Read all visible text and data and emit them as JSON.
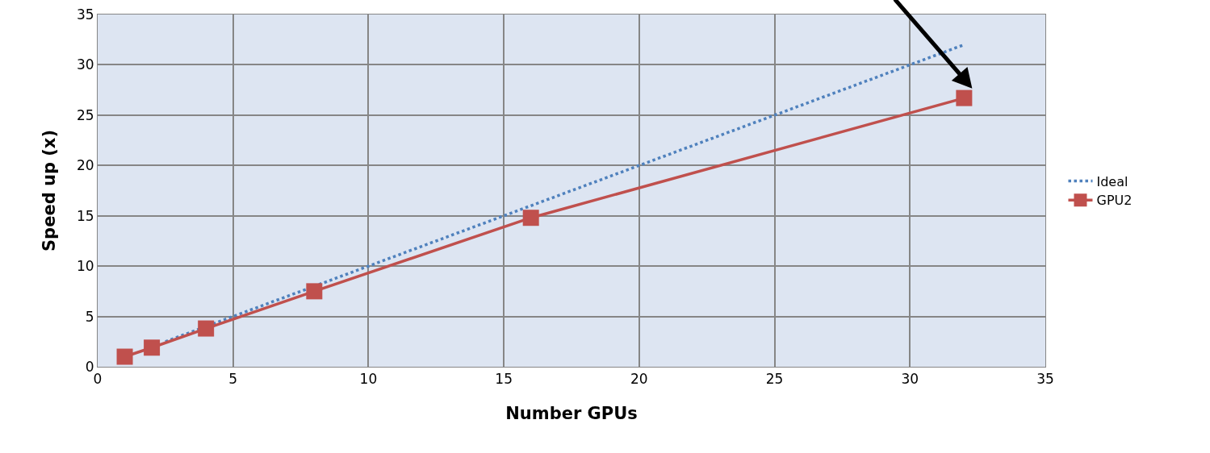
{
  "chart_data": {
    "type": "line",
    "xlabel": "Number GPUs",
    "ylabel": "Speed up (x)",
    "x": [
      1,
      2,
      4,
      8,
      16,
      32
    ],
    "series": [
      {
        "name": "Ideal",
        "color": "#4f81bd",
        "x": [
          2.5,
          12,
          24,
          32
        ],
        "values": [
          2.5,
          12,
          24,
          32
        ],
        "line_style": "dotted",
        "marker": "none"
      },
      {
        "name": "GPU2",
        "color": "#c0504d",
        "values": [
          1,
          1.9,
          3.8,
          7.5,
          14.8,
          26.7
        ],
        "line_style": "solid",
        "marker": "square"
      }
    ],
    "xlim": [
      0,
      35
    ],
    "xticks": [
      0,
      5,
      10,
      15,
      20,
      25,
      30,
      35
    ],
    "ylim": [
      0,
      35
    ],
    "yticks": [
      0,
      5,
      10,
      15,
      20,
      25,
      30,
      35
    ],
    "grid": true,
    "legend": "right"
  }
}
